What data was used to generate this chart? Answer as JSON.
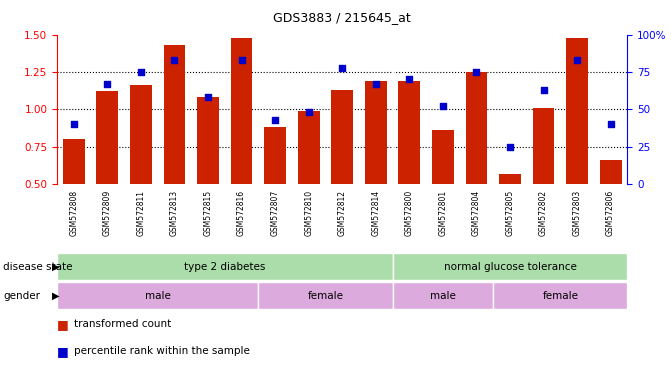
{
  "title": "GDS3883 / 215645_at",
  "samples": [
    "GSM572808",
    "GSM572809",
    "GSM572811",
    "GSM572813",
    "GSM572815",
    "GSM572816",
    "GSM572807",
    "GSM572810",
    "GSM572812",
    "GSM572814",
    "GSM572800",
    "GSM572801",
    "GSM572804",
    "GSM572805",
    "GSM572802",
    "GSM572803",
    "GSM572806"
  ],
  "bar_values": [
    0.8,
    1.12,
    1.16,
    1.43,
    1.08,
    1.48,
    0.88,
    0.99,
    1.13,
    1.19,
    1.19,
    0.86,
    1.25,
    0.57,
    1.01,
    1.48,
    0.66
  ],
  "percentile_values": [
    40,
    67,
    75,
    83,
    58,
    83,
    43,
    48,
    78,
    67,
    70,
    52,
    75,
    25,
    63,
    83,
    40
  ],
  "ylim_left": [
    0.5,
    1.5
  ],
  "ylim_right": [
    0,
    100
  ],
  "yticks_left": [
    0.5,
    0.75,
    1.0,
    1.25,
    1.5
  ],
  "yticks_right": [
    0,
    25,
    50,
    75,
    100
  ],
  "bar_color": "#cc2200",
  "dot_color": "#0000cc",
  "disease_state_groups": [
    {
      "label": "type 2 diabetes",
      "start": 0,
      "end": 9
    },
    {
      "label": "normal glucose tolerance",
      "start": 10,
      "end": 16
    }
  ],
  "disease_state_color": "#aaddaa",
  "gender_groups": [
    {
      "label": "male",
      "start": 0,
      "end": 5
    },
    {
      "label": "female",
      "start": 6,
      "end": 9
    },
    {
      "label": "male",
      "start": 10,
      "end": 12
    },
    {
      "label": "female",
      "start": 13,
      "end": 16
    }
  ],
  "gender_color": "#ddaadd",
  "annotation_label_fontsize": 7.5,
  "bar_fontsize": 5.5,
  "title_fontsize": 9,
  "axis_fontsize": 7.5,
  "legend_fontsize": 7.5
}
